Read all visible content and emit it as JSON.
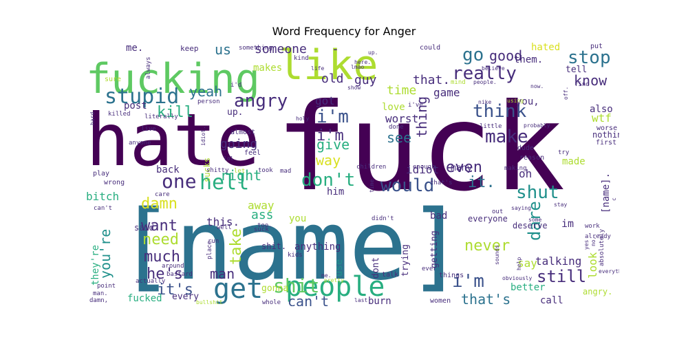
{
  "title": "Word Frequency for Anger",
  "palette": {
    "darkpurple": "#440154",
    "purple": "#472d7b",
    "indigo": "#3b528b",
    "blue": "#2c728e",
    "teal": "#21918c",
    "green": "#28ae80",
    "lightgreen": "#5ec962",
    "lime": "#addc30",
    "yellow": "#d9e021"
  },
  "words": [
    {
      "text": "fuck",
      "color": "darkpurple"
    },
    {
      "text": "[name]",
      "color": "blue"
    },
    {
      "text": "hate",
      "color": "darkpurple"
    },
    {
      "text": "fucking",
      "color": "lightgreen"
    },
    {
      "text": "like",
      "color": "lime"
    },
    {
      "text": "people",
      "color": "green"
    },
    {
      "text": "get",
      "color": "blue"
    },
    {
      "text": "stupid",
      "color": "blue"
    },
    {
      "text": "hell",
      "color": "green"
    },
    {
      "text": "shit",
      "color": "lightgreen"
    },
    {
      "text": "angry",
      "color": "purple"
    },
    {
      "text": "really",
      "color": "purple"
    },
    {
      "text": "stop",
      "color": "blue"
    },
    {
      "text": "go",
      "color": "blue"
    },
    {
      "text": "one",
      "color": "purple"
    },
    {
      "text": "would",
      "color": "indigo"
    },
    {
      "text": "don't",
      "color": "green"
    },
    {
      "text": "i'm",
      "color": "indigo"
    },
    {
      "text": "think",
      "color": "indigo"
    },
    {
      "text": "make",
      "color": "purple"
    },
    {
      "text": "shut",
      "color": "teal"
    },
    {
      "text": "know",
      "color": "purple"
    },
    {
      "text": "good",
      "color": "purple"
    },
    {
      "text": "us",
      "color": "blue"
    },
    {
      "text": "someone",
      "color": "purple"
    },
    {
      "text": "-",
      "color": "purple"
    },
    {
      "text": "kill",
      "color": "green"
    },
    {
      "text": "yeah",
      "color": "blue"
    },
    {
      "text": "damn",
      "color": "yellow"
    },
    {
      "text": "want",
      "color": "purple"
    },
    {
      "text": "need",
      "color": "lime"
    },
    {
      "text": "much",
      "color": "purple"
    },
    {
      "text": "you're",
      "color": "teal"
    },
    {
      "text": "it's",
      "color": "indigo"
    },
    {
      "text": "he's",
      "color": "purple"
    },
    {
      "text": "man",
      "color": "purple"
    },
    {
      "text": "can't",
      "color": "indigo"
    },
    {
      "text": "that's",
      "color": "blue"
    },
    {
      "text": "i'm",
      "color": "indigo"
    },
    {
      "text": "still",
      "color": "purple"
    },
    {
      "text": "dare",
      "color": "teal"
    },
    {
      "text": "never",
      "color": "lime"
    },
    {
      "text": "take",
      "color": "lime"
    },
    {
      "text": "even",
      "color": "purple"
    },
    {
      "text": "it.",
      "color": "blue"
    },
    {
      "text": "i'm",
      "color": "purple"
    },
    {
      "text": "see",
      "color": "blue"
    },
    {
      "text": "way",
      "color": "yellow"
    },
    {
      "text": "give",
      "color": "green"
    },
    {
      "text": "thing",
      "color": "purple"
    },
    {
      "text": "right",
      "color": "green"
    },
    {
      "text": "going",
      "color": "purple"
    },
    {
      "text": "old",
      "color": "purple"
    },
    {
      "text": "guy",
      "color": "purple"
    },
    {
      "text": "that.",
      "color": "purple"
    },
    {
      "text": "time",
      "color": "lime"
    },
    {
      "text": "got",
      "color": "purple"
    },
    {
      "text": "worst",
      "color": "purple"
    },
    {
      "text": "game",
      "color": "purple"
    },
    {
      "text": "love",
      "color": "lime"
    },
    {
      "text": "idiot",
      "color": "purple"
    },
    {
      "text": "him",
      "color": "purple"
    },
    {
      "text": "away",
      "color": "lime"
    },
    {
      "text": "ass",
      "color": "green"
    },
    {
      "text": "you",
      "color": "lime"
    },
    {
      "text": "this.",
      "color": "purple"
    },
    {
      "text": "back",
      "color": "purple"
    },
    {
      "text": "bitch",
      "color": "green"
    },
    {
      "text": "oh",
      "color": "purple"
    },
    {
      "text": "made",
      "color": "lime"
    },
    {
      "text": "wtf",
      "color": "lime"
    },
    {
      "text": "also",
      "color": "purple"
    },
    {
      "text": "tell",
      "color": "purple"
    },
    {
      "text": "hated",
      "color": "yellow"
    },
    {
      "text": "them.",
      "color": "purple"
    },
    {
      "text": "you,",
      "color": "purple"
    },
    {
      "text": "me.",
      "color": "purple"
    },
    {
      "text": "makes",
      "color": "lime"
    },
    {
      "text": "post",
      "color": "purple"
    },
    {
      "text": "up.",
      "color": "purple"
    },
    {
      "text": "sucks",
      "color": "lime"
    },
    {
      "text": "talking",
      "color": "purple"
    },
    {
      "text": "say",
      "color": "lime"
    },
    {
      "text": "im",
      "color": "purple"
    },
    {
      "text": "bad",
      "color": "purple"
    },
    {
      "text": "call",
      "color": "purple"
    },
    {
      "text": "better",
      "color": "green"
    },
    {
      "text": "look",
      "color": "lime"
    },
    {
      "text": "[name].",
      "color": "purple"
    },
    {
      "text": "they're",
      "color": "green"
    },
    {
      "text": "fucked",
      "color": "green"
    },
    {
      "text": "every",
      "color": "purple"
    },
    {
      "text": "gonna",
      "color": "lime"
    },
    {
      "text": "burn",
      "color": "purple"
    },
    {
      "text": "use",
      "color": "teal"
    },
    {
      "text": "anything",
      "color": "purple"
    },
    {
      "text": "dont",
      "color": "purple"
    },
    {
      "text": "trying",
      "color": "purple"
    },
    {
      "text": "getting",
      "color": "purple"
    },
    {
      "text": "many",
      "color": "purple"
    },
    {
      "text": "said",
      "color": "purple"
    },
    {
      "text": "shit.",
      "color": "purple"
    },
    {
      "text": "deserve",
      "color": "purple"
    },
    {
      "text": "everyone",
      "color": "purple"
    },
    {
      "text": "angry.",
      "color": "lime"
    },
    {
      "text": "nothing",
      "color": "purple"
    },
    {
      "text": "worse",
      "color": "purple"
    },
    {
      "text": "first",
      "color": "purple"
    },
    {
      "text": "put",
      "color": "purple"
    },
    {
      "text": "find",
      "color": "purple"
    },
    {
      "text": "keep",
      "color": "purple"
    },
    {
      "text": "could",
      "color": "purple"
    },
    {
      "text": "something",
      "color": "purple"
    },
    {
      "text": "kind",
      "color": "purple"
    },
    {
      "text": "always",
      "color": "purple"
    },
    {
      "text": "sure",
      "color": "lime"
    },
    {
      "text": "i'd",
      "color": "purple"
    },
    {
      "text": "person",
      "color": "purple"
    },
    {
      "text": "literally",
      "color": "purple"
    },
    {
      "text": "killed",
      "color": "purple"
    },
    {
      "text": "live",
      "color": "purple"
    },
    {
      "text": "anyone",
      "color": "purple"
    },
    {
      "text": "play",
      "color": "purple"
    },
    {
      "text": "wrong",
      "color": "purple"
    },
    {
      "text": "care",
      "color": "purple"
    },
    {
      "text": "can't",
      "color": "purple"
    },
    {
      "text": "almost",
      "color": "purple"
    },
    {
      "text": "feel",
      "color": "purple"
    },
    {
      "text": "holy",
      "color": "purple"
    },
    {
      "text": "lol",
      "color": "purple"
    },
    {
      "text": "idiot.",
      "color": "purple"
    },
    {
      "text": "shitty",
      "color": "purple"
    },
    {
      "text": "let",
      "color": "lime"
    },
    {
      "text": "took",
      "color": "purple"
    },
    {
      "text": "mad",
      "color": "purple"
    },
    {
      "text": "children",
      "color": "purple"
    },
    {
      "text": "enough",
      "color": "purple"
    },
    {
      "text": "making",
      "color": "purple"
    },
    {
      "text": "that's",
      "color": "purple"
    },
    {
      "text": "i've",
      "color": "purple"
    },
    {
      "text": "done",
      "color": "purple"
    },
    {
      "text": "little",
      "color": "purple"
    },
    {
      "text": "reason",
      "color": "purple"
    },
    {
      "text": "dude",
      "color": "purple"
    },
    {
      "text": "try",
      "color": "purple"
    },
    {
      "text": "too.",
      "color": "purple"
    },
    {
      "text": "well",
      "color": "purple"
    },
    {
      "text": "suck",
      "color": "purple"
    },
    {
      "text": "didn't",
      "color": "purple"
    },
    {
      "text": "run",
      "color": "purple"
    },
    {
      "text": "place",
      "color": "purple"
    },
    {
      "text": "kids",
      "color": "purple"
    },
    {
      "text": "around",
      "color": "purple"
    },
    {
      "text": "bastard",
      "color": "purple"
    },
    {
      "text": "actually",
      "color": "purple"
    },
    {
      "text": "point",
      "color": "purple"
    },
    {
      "text": "man.",
      "color": "purple"
    },
    {
      "text": "damn,",
      "color": "purple"
    },
    {
      "text": "bullshit",
      "color": "lime"
    },
    {
      "text": "whole",
      "color": "purple"
    },
    {
      "text": "last",
      "color": "purple"
    },
    {
      "text": "women",
      "color": "purple"
    },
    {
      "text": "things",
      "color": "purple"
    },
    {
      "text": "talk",
      "color": "purple"
    },
    {
      "text": "pretty",
      "color": "lime"
    },
    {
      "text": "me.",
      "color": "purple"
    },
    {
      "text": "out",
      "color": "purple"
    },
    {
      "text": "saying",
      "color": "purple"
    },
    {
      "text": "some",
      "color": "purple"
    },
    {
      "text": "stay",
      "color": "purple"
    },
    {
      "text": "work",
      "color": "purple"
    },
    {
      "text": "already",
      "color": "purple"
    },
    {
      "text": "no,",
      "color": "purple"
    },
    {
      "text": "help",
      "color": "purple"
    },
    {
      "text": "sounds",
      "color": "purple"
    },
    {
      "text": "obviously",
      "color": "purple"
    },
    {
      "text": "absolutely",
      "color": "purple"
    },
    {
      "text": "everything",
      "color": "purple"
    },
    {
      "text": "c",
      "color": "purple"
    },
    {
      "text": "life",
      "color": "purple"
    },
    {
      "text": "lmao",
      "color": "purple"
    },
    {
      "text": "show",
      "color": "purple"
    },
    {
      "text": "here.",
      "color": "purple"
    },
    {
      "text": "up.",
      "color": "purple"
    },
    {
      "text": "mind",
      "color": "lime"
    },
    {
      "text": "people.",
      "color": "purple"
    },
    {
      "text": "believe",
      "color": "purple"
    },
    {
      "text": "nike",
      "color": "purple"
    },
    {
      "text": "probably",
      "color": "purple"
    },
    {
      "text": "now.",
      "color": "purple"
    },
    {
      "text": "off.",
      "color": "purple"
    },
    {
      "text": "yes",
      "color": "purple"
    },
    {
      "text": "hard",
      "color": "purple"
    },
    {
      "text": "using",
      "color": "lime"
    },
    {
      "text": "time.",
      "color": "purple"
    },
    {
      "text": "ever",
      "color": "purple"
    },
    {
      "text": "2",
      "color": "purple"
    }
  ]
}
